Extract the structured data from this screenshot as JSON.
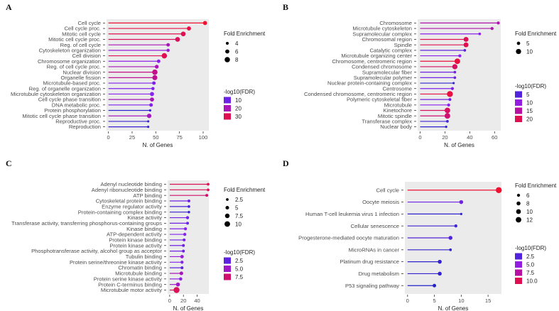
{
  "color_scale": [
    "#2323c8",
    "#8a22f0",
    "#b8109e",
    "#f01030"
  ],
  "chart_data": [
    {
      "panel": "A",
      "type": "lollipop",
      "xlabel": "N. of Genes",
      "xlim": [
        -2,
        106
      ],
      "xticks": [
        0,
        25,
        50,
        75,
        100
      ],
      "size_title": "Fold Enrichment",
      "size_breaks": [
        4,
        6,
        8
      ],
      "size_range": [
        3,
        9
      ],
      "color_title": "-log10(FDR)",
      "color_breaks": [
        10,
        20,
        30
      ],
      "color_range": [
        3,
        33
      ],
      "grid": false,
      "categories": [
        "Cell cycle",
        "Cell cycle proc.",
        "Mitotic cell cycle",
        "Mitotic cell cycle proc.",
        "Reg. of cell cycle",
        "Cytoskeleton organization",
        "Cell division",
        "Chromosome organization",
        "Reg. of cell cycle proc.",
        "Nuclear division",
        "Organelle fission",
        "Microtubule-based proc.",
        "Reg. of organelle organization",
        "Microtubule cytoskeleton organization",
        "Cell cycle phase transition",
        "DNA metabolic proc.",
        "Protein phosphorylation",
        "Mitotic cell cycle phase transition",
        "Reproductive proc.",
        "Reproduction"
      ],
      "genes": [
        102,
        85,
        79,
        73,
        63,
        63,
        59,
        53,
        51,
        49,
        49,
        48,
        47,
        46,
        46,
        45,
        44,
        43,
        42,
        42
      ],
      "fold": [
        6,
        6,
        7,
        7,
        5,
        4.5,
        8,
        5,
        5.5,
        8,
        7.5,
        5,
        4.5,
        6,
        6,
        5,
        3,
        6.5,
        3,
        3
      ],
      "fdr": [
        33,
        31,
        30,
        29,
        20,
        16,
        30,
        14,
        20,
        25,
        24,
        12,
        12,
        13,
        20,
        12,
        4,
        19,
        5,
        5
      ]
    },
    {
      "panel": "B",
      "type": "lollipop",
      "xlabel": "N. of Genes",
      "xlim": [
        -2,
        65
      ],
      "xticks": [
        0,
        20,
        40,
        60
      ],
      "size_title": "Fold Enrichment",
      "size_breaks": [
        5,
        10
      ],
      "size_range": [
        2,
        12
      ],
      "color_title": "-log10(FDR)",
      "color_breaks": [
        5,
        10,
        15,
        20
      ],
      "color_range": [
        2,
        22
      ],
      "grid": false,
      "categories": [
        "Chromosome",
        "Microtubule cytoskeleton",
        "Supramolecular complex",
        "Chromosomal region",
        "Spindle",
        "Catalytic complex",
        "Microtubule organizing center",
        "Chromosome, centromeric region",
        "Condensed chromosome",
        "Supramolecular fiber",
        "Supramolecular polymer",
        "Nuclear protein-containing complex",
        "Centrosome",
        "Condensed chromosome, centromeric region",
        "Polymeric cytoskeletal fiber",
        "Microtubule",
        "Kinetochore",
        "Mitotic spindle",
        "Transferase complex",
        "Nuclear body"
      ],
      "genes": [
        63,
        58,
        48,
        37,
        37,
        36,
        32,
        30,
        28,
        28,
        28,
        27,
        26,
        24,
        24,
        23,
        22,
        22,
        22,
        21
      ],
      "fold": [
        4,
        4,
        3,
        9,
        9,
        3,
        4,
        11,
        10,
        3,
        3,
        2,
        4,
        12,
        3.5,
        4,
        11,
        11,
        3,
        2
      ],
      "fdr": [
        14,
        14,
        9,
        20,
        20,
        6,
        9,
        21,
        19,
        7,
        7,
        3,
        8,
        21,
        7,
        9,
        19,
        18,
        4,
        3
      ]
    },
    {
      "panel": "C",
      "type": "lollipop",
      "xlabel": "N. of Genes",
      "xlim": [
        -3,
        57
      ],
      "xticks": [
        0,
        20,
        40
      ],
      "size_title": "Fold Enrichment",
      "size_breaks": [
        2.5,
        5.0,
        7.5,
        10.0
      ],
      "size_range": [
        1.5,
        11
      ],
      "color_title": "-log10(FDR)",
      "color_breaks": [
        2.5,
        5.0,
        7.5
      ],
      "color_range": [
        1,
        9
      ],
      "grid": false,
      "categories": [
        "Adenyl nucleotide binding",
        "Adenyl ribonucleotide binding",
        "ATP binding",
        "Cytoskeletal protein binding",
        "Enzyme regulator activity",
        "Protein-containing complex binding",
        "Kinase activity",
        "Transferase activity, transferring phosphorus-containing groups",
        "Kinase binding",
        "ATP-dependent activity",
        "Protein kinase binding",
        "Protein kinase activity",
        "Phosphotransferase activity, alcohol group as acceptor",
        "Tubulin binding",
        "Protein serine/threonine kinase activity",
        "Chromatin binding",
        "Microtubule binding",
        "Protein serine kinase activity",
        "Protein C-terminus binding",
        "Microtubule motor activity"
      ],
      "genes": [
        56,
        56,
        54,
        28,
        28,
        28,
        26,
        26,
        23,
        22,
        21,
        20,
        20,
        18,
        18,
        18,
        17,
        16,
        12,
        10
      ],
      "fold": [
        2.5,
        2.5,
        3,
        3,
        2.5,
        2,
        3.5,
        3,
        3.5,
        3.5,
        3,
        3,
        3,
        4.5,
        3.5,
        3,
        5,
        4,
        6,
        11
      ],
      "fdr": [
        8,
        8,
        7.5,
        3,
        2,
        1.5,
        3,
        3,
        3.5,
        3.5,
        3,
        3,
        3,
        4.5,
        3.5,
        2.5,
        5.5,
        4,
        5,
        8
      ]
    },
    {
      "panel": "D",
      "type": "lollipop",
      "xlabel": "N. of Genes",
      "xlim": [
        -0.5,
        17.5
      ],
      "xticks": [
        0,
        5,
        10,
        15
      ],
      "size_title": "Fold Enrichment",
      "size_breaks": [
        6,
        8,
        10,
        12
      ],
      "size_range": [
        4,
        13
      ],
      "color_title": "-log10(FDR)",
      "color_breaks": [
        2.5,
        5.0,
        7.5,
        10.0
      ],
      "color_range": [
        1,
        11
      ],
      "grid": false,
      "categories": [
        "Cell cycle",
        "Oocyte meiosis",
        "Human T-cell leukemia virus 1 infection",
        "Cellular senescence",
        "Progesterone-mediated oocyte maturation",
        "MicroRNAs in cancer",
        "Platinum drug resistance",
        "Drug metabolism",
        "P53 signaling pathway"
      ],
      "genes": [
        17,
        10,
        10,
        9,
        8,
        8,
        6,
        6,
        5
      ],
      "fold": [
        13,
        8,
        4,
        6,
        8,
        5,
        8,
        8,
        7
      ],
      "fdr": [
        11,
        3.5,
        1.5,
        2,
        2.5,
        1.5,
        1.5,
        1.5,
        1
      ]
    }
  ]
}
